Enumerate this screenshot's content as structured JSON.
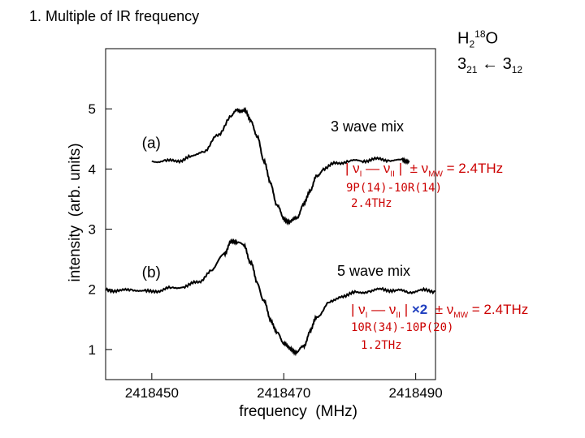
{
  "slide_title": "1. Multiple of IR frequency",
  "molecule": {
    "base": "H",
    "h_subscript": "2",
    "isotope": "18",
    "element": "O",
    "transition_upper": "3",
    "upper_sub": "21",
    "arrow": "←",
    "transition_lower": "3",
    "lower_sub": "12"
  },
  "annotations": {
    "three_wave": {
      "title": "3 wave mix",
      "formula_prefix": "| ν",
      "sub_i": "I",
      "dash": "—",
      "nu2": "ν",
      "sub_ii": "II",
      "formula_suffix": "|",
      "pm": "±",
      "nu_mw": "ν",
      "sub_mw": "MW",
      "equals": "= 2.4THz",
      "lines": [
        "9P(14)-10R(14)",
        "2.4THz"
      ]
    },
    "five_wave": {
      "title": "5 wave mix",
      "formula_prefix": "| ν",
      "sub_i": "I",
      "dash": "—",
      "nu2": "ν",
      "sub_ii": "II",
      "formula_suffix": "|",
      "multiplier": "×2",
      "pm": "±",
      "nu_mw": "ν",
      "sub_mw": "MW",
      "equals": "= 2.4THz",
      "lines": [
        "10R(34)-10P(20)",
        "1.2THz"
      ]
    }
  },
  "colors": {
    "annotation_red": "#cc0000",
    "multiplier_blue": "#1f3fbf",
    "trace": "#000000"
  },
  "chart_data": {
    "type": "line",
    "title": "",
    "xlabel": "frequency  (MHz)",
    "ylabel": "intensity  (arb. units)",
    "xlim": [
      2418443,
      2418493
    ],
    "ylim": [
      0.5,
      6.0
    ],
    "x_ticks": [
      2418450,
      2418470,
      2418490
    ],
    "x_tick_labels": [
      "2418450",
      "2418470",
      "2418490"
    ],
    "y_ticks": [
      1,
      2,
      3,
      4,
      5
    ],
    "y_tick_labels": [
      "1",
      "2",
      "3",
      "4",
      "5"
    ],
    "series": [
      {
        "name": "(a)",
        "label": "(a)",
        "x": [
          2418450,
          2418452,
          2418454,
          2418456,
          2418458,
          2418460,
          2418462,
          2418463,
          2418464,
          2418465,
          2418466,
          2418467,
          2418468,
          2418469,
          2418470,
          2418471,
          2418472,
          2418473,
          2418474,
          2418475,
          2418476,
          2418478,
          2418480,
          2418482,
          2418484,
          2418486,
          2418488,
          2418489
        ],
        "y": [
          4.13,
          4.13,
          4.14,
          4.2,
          4.31,
          4.55,
          4.88,
          4.98,
          4.97,
          4.82,
          4.52,
          4.15,
          3.75,
          3.4,
          3.17,
          3.12,
          3.2,
          3.4,
          3.65,
          3.87,
          4.0,
          4.1,
          4.13,
          4.14,
          4.16,
          4.15,
          4.14,
          4.14
        ]
      },
      {
        "name": "(b)",
        "label": "(b)",
        "x": [
          2418443,
          2418445,
          2418447,
          2418449,
          2418451,
          2418453,
          2418455,
          2418457,
          2418459,
          2418461,
          2418462,
          2418463,
          2418464,
          2418465,
          2418466,
          2418467,
          2418468,
          2418469,
          2418470,
          2418471,
          2418472,
          2418473,
          2418474,
          2418475,
          2418477,
          2418479,
          2418481,
          2418483,
          2418485,
          2418487,
          2418489,
          2418491,
          2418493
        ],
        "y": [
          2.0,
          1.97,
          2.0,
          1.96,
          1.98,
          2.02,
          2.05,
          2.12,
          2.3,
          2.6,
          2.78,
          2.8,
          2.72,
          2.45,
          2.1,
          1.8,
          1.5,
          1.27,
          1.12,
          1.0,
          0.96,
          1.05,
          1.3,
          1.55,
          1.78,
          1.9,
          1.94,
          1.97,
          2.0,
          1.98,
          1.96,
          1.98,
          1.97
        ]
      }
    ]
  }
}
